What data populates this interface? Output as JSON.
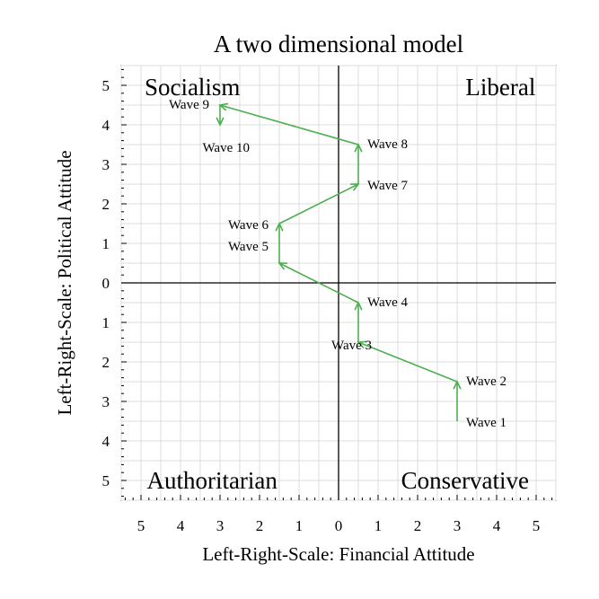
{
  "chart_data": {
    "type": "line",
    "title": "A two dimensional model",
    "xlabel": "Left-Right-Scale: Financial Attitude",
    "ylabel": "Left-Right-Scale: Political Attitude",
    "xlim": [
      -5.5,
      5.5
    ],
    "ylim": [
      -5.5,
      5.5
    ],
    "grid": true,
    "x_ticks": [
      -5,
      -4,
      -3,
      -2,
      -1,
      0,
      1,
      2,
      3,
      4,
      5
    ],
    "x_tick_labels": [
      "5",
      "4",
      "3",
      "2",
      "1",
      "0",
      "1",
      "2",
      "3",
      "4",
      "5"
    ],
    "y_ticks": [
      5,
      4,
      3,
      2,
      1,
      0,
      -1,
      -2,
      -3,
      -4,
      -5
    ],
    "y_tick_labels": [
      "5",
      "4",
      "3",
      "2",
      "1",
      "0",
      "1",
      "2",
      "3",
      "4",
      "5"
    ],
    "quadrants": [
      {
        "label": "Socialism",
        "position": "top-left"
      },
      {
        "label": "Liberal",
        "position": "top-right"
      },
      {
        "label": "Authoritarian",
        "position": "bottom-left"
      },
      {
        "label": "Conservative",
        "position": "bottom-right"
      }
    ],
    "series": [
      {
        "color": "#4caf50",
        "points": [
          {
            "label": "Wave 1",
            "x": 3,
            "y": -3.5
          },
          {
            "label": "Wave 2",
            "x": 3,
            "y": -2.5
          },
          {
            "label": "Wave 3",
            "x": 0.5,
            "y": -1.5
          },
          {
            "label": "Wave 4",
            "x": 0.5,
            "y": -0.5
          },
          {
            "label": "Wave 5",
            "x": -1.5,
            "y": 0.5
          },
          {
            "label": "Wave 6",
            "x": -1.5,
            "y": 1.5
          },
          {
            "label": "Wave 7",
            "x": 0.5,
            "y": 2.5
          },
          {
            "label": "Wave 8",
            "x": 0.5,
            "y": 3.5
          },
          {
            "label": "Wave 9",
            "x": -3,
            "y": 4.5
          },
          {
            "label": "Wave 10",
            "x": -3,
            "y": 4
          }
        ]
      }
    ]
  }
}
